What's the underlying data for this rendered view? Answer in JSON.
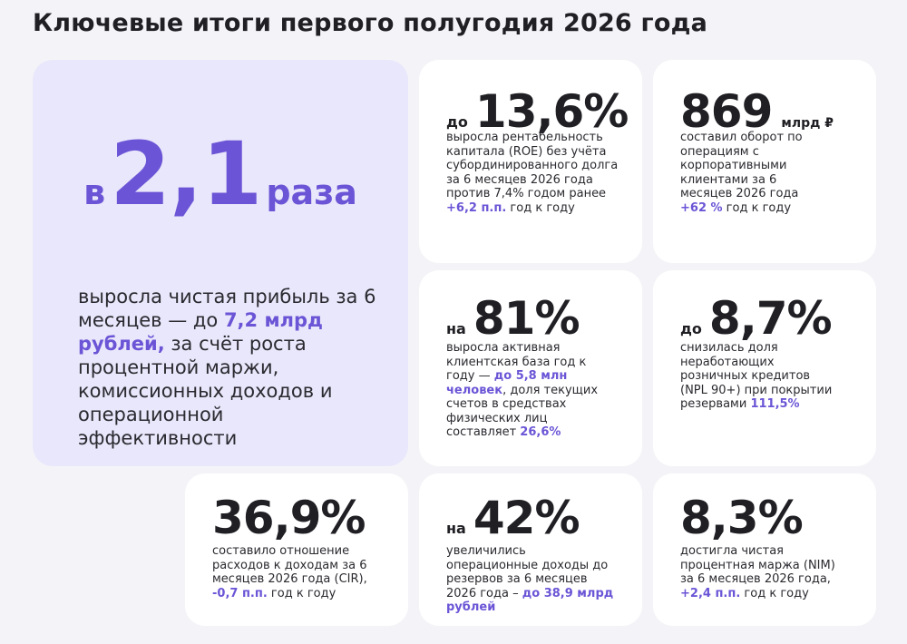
{
  "title": "Ключевые итоги первого полугодия 2026 года",
  "accent_color": "#6b55d6",
  "hero": {
    "prefix": "в",
    "value": "2,1",
    "suffix": "раза",
    "text_1": "выросла чистая прибыль за 6 месяцев — до ",
    "text_accent": "7,2 млрд рублей,",
    "text_2": " за счёт роста процентной маржи, комиссионных доходов и операционной эффективности"
  },
  "cards": {
    "roe": {
      "prefix": "до",
      "value": "13,6%",
      "text_1": "выросла рентабельность капитала (ROE) без учёта субординированного долга за 6 месяцев 2026 года против 7,4% годом ранее",
      "accent": "+6,2 п.п.",
      "text_2": " год к году"
    },
    "turnover": {
      "value": "869",
      "unit": "млрд ₽",
      "text_1": "составил оборот по операциям с корпоративными клиентами за 6 месяцев 2026 года",
      "accent": "+62 %",
      "text_2": " год к году"
    },
    "clients": {
      "prefix": "на",
      "value": "81%",
      "text_1": "выросла активная клиентская база год к году — ",
      "accent": "до 5,8 млн человек",
      "text_2": ", доля текущих счетов в средствах физических лиц составляет ",
      "accent_2": "26,6%"
    },
    "npl": {
      "prefix": "до",
      "value": "8,7%",
      "text_1": "снизилась доля неработающих розничных кредитов (NPL 90+) при покрытии резервами ",
      "accent": "111,5%"
    },
    "cir": {
      "value": "36,9%",
      "text_1": "составило отношение расходов к доходам за 6 месяцев 2026 года (CIR), ",
      "accent": "-0,7 п.п.",
      "text_2": " год к году"
    },
    "income": {
      "prefix": "на",
      "value": "42%",
      "text_1": "увеличились операционные доходы до резервов за 6 месяцев 2026 года – ",
      "accent": "до 38,9 млрд рублей"
    },
    "nim": {
      "value": "8,3%",
      "text_1": "достигла чистая процентная маржа (NIM) за 6 месяцев 2026 года, ",
      "accent": "+2,4 п.п.",
      "text_2": " год к году"
    }
  }
}
